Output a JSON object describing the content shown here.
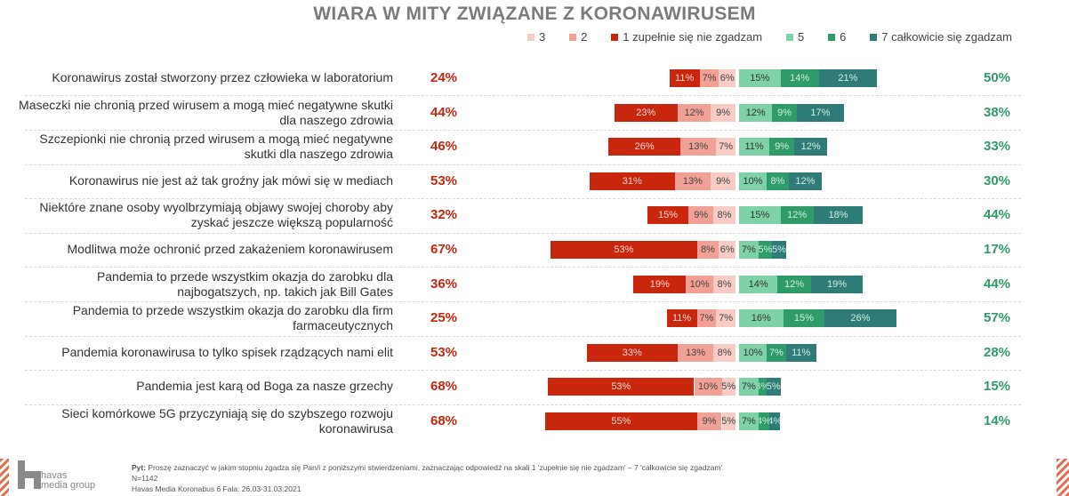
{
  "chart_data": {
    "type": "bar",
    "title": "WIARA W MITY ZWIĄZANE Z KORONAWIRUSEM",
    "legend": [
      {
        "key": "3",
        "label": "3",
        "color": "#f8cbc4"
      },
      {
        "key": "2",
        "label": "2",
        "color": "#f1a095"
      },
      {
        "key": "1",
        "label": "1 zupełnie się nie zgadzam",
        "color": "#c9260e"
      },
      {
        "key": "5",
        "label": "5",
        "color": "#7fd2a7"
      },
      {
        "key": "6",
        "label": "6",
        "color": "#2f9b68"
      },
      {
        "key": "7",
        "label": "7 całkowicie się zgadzam",
        "color": "#2e7b78"
      }
    ],
    "legend_position": "top-right",
    "categories": [
      "Koronawirus został stworzony przez człowieka w laboratorium",
      "Maseczki nie chronią przed wirusem a mogą mieć negatywne skutki dla naszego zdrowia",
      "Szczepionki nie chronią przed wirusem a mogą mieć negatywne skutki dla naszego zdrowia",
      "Koronawirus nie jest aż tak groźny jak mówi się w mediach",
      "Niektóre znane osoby wyolbrzymiają objawy swojej choroby aby zyskać jeszcze większą popularność",
      "Modlitwa może ochronić przed zakażeniem koronawirusem",
      "Pandemia to przede wszystkim okazja do zarobku dla najbogatszych, np. takich jak Bill Gates",
      "Pandemia to przede wszystkim okazja do zarobku dla firm farmaceutycznych",
      "Pandemia koronawirusa to tylko spisek rządzących nami elit",
      "Pandemia jest karą od Boga za nasze grzechy",
      "Sieci komórkowe 5G przyczyniają się do szybszego rozwoju koronawirusa"
    ],
    "series": [
      {
        "name": "1 zupełnie się nie zgadzam",
        "values": [
          11,
          23,
          26,
          31,
          15,
          53,
          19,
          11,
          33,
          53,
          55
        ]
      },
      {
        "name": "2",
        "values": [
          7,
          12,
          13,
          13,
          9,
          8,
          10,
          7,
          13,
          10,
          9
        ]
      },
      {
        "name": "3",
        "values": [
          6,
          9,
          7,
          9,
          8,
          6,
          8,
          7,
          8,
          5,
          5
        ]
      },
      {
        "name": "5",
        "values": [
          15,
          12,
          11,
          10,
          15,
          7,
          14,
          16,
          10,
          7,
          7
        ]
      },
      {
        "name": "6",
        "values": [
          14,
          9,
          9,
          8,
          12,
          5,
          12,
          15,
          7,
          3,
          4
        ]
      },
      {
        "name": "7 całkowicie się zgadzam",
        "values": [
          21,
          17,
          12,
          12,
          18,
          5,
          19,
          26,
          11,
          5,
          4
        ]
      }
    ],
    "disagree_total": [
      "24%",
      "44%",
      "46%",
      "53%",
      "32%",
      "67%",
      "36%",
      "25%",
      "53%",
      "68%",
      "68%"
    ],
    "agree_total": [
      "50%",
      "38%",
      "33%",
      "30%",
      "44%",
      "17%",
      "44%",
      "57%",
      "28%",
      "15%",
      "14%"
    ],
    "disagree_color": "#c9260e",
    "agree_color": "#2f9b68"
  },
  "footer": {
    "question_prefix": "Pyt:",
    "question": " Proszę zaznaczyć w jakim stopniu zgadza się Pan/i z poniższymi stwierdzeniami, zaznaczając odpowiedź na skali 1 'zupełnie się nie zgadzam' – 7 'całkowicie się zgadzam'",
    "n": "N=1142",
    "source": "Havas Media Koronabus 6 Fala: 26.03-31.03.2021"
  },
  "logo": {
    "line1": "havas",
    "line2": "media group"
  }
}
